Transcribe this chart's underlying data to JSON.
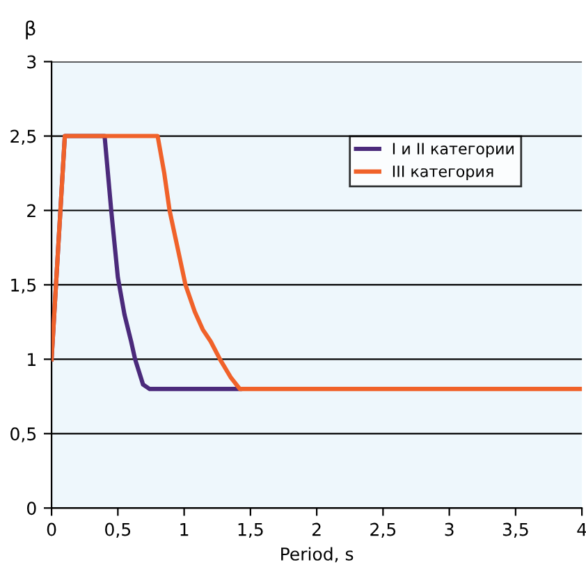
{
  "chart_data": {
    "type": "line",
    "xlabel": "Period, s",
    "ylabel": "β",
    "xlim": [
      0,
      4
    ],
    "ylim": [
      0,
      3
    ],
    "xticks": [
      0,
      {
        "value": 0.5,
        "label": "0,5"
      },
      1,
      {
        "value": 1.5,
        "label": "1,5"
      },
      2,
      {
        "value": 2.5,
        "label": "2,5"
      },
      3,
      {
        "value": 3.5,
        "label": "3,5"
      },
      4
    ],
    "yticks": [
      0,
      {
        "value": 0.5,
        "label": "0,5"
      },
      1,
      {
        "value": 1.5,
        "label": "1,5"
      },
      2,
      {
        "value": 2.5,
        "label": "2,5"
      },
      3
    ],
    "grid": "y",
    "legend": "top right",
    "marker": "none",
    "line_style": "solid",
    "series": [
      {
        "name": "I и II категории",
        "color": "#4b2a7b",
        "x": [
          0,
          0.1,
          0.4,
          0.45,
          0.5,
          0.55,
          0.6,
          0.63,
          0.69,
          0.74,
          1.42
        ],
        "values": [
          1,
          2.5,
          2.5,
          2.0,
          1.55,
          1.3,
          1.12,
          1.0,
          0.83,
          0.8,
          0.8
        ]
      },
      {
        "name": "III категория",
        "color": "#f0622a",
        "x": [
          0,
          0.1,
          0.8,
          0.85,
          0.89,
          0.95,
          1.01,
          1.08,
          1.14,
          1.2,
          1.27,
          1.35,
          1.42,
          4
        ],
        "values": [
          1,
          2.5,
          2.5,
          2.25,
          2.0,
          1.75,
          1.5,
          1.32,
          1.2,
          1.12,
          1.0,
          0.88,
          0.8,
          0.8
        ]
      }
    ]
  }
}
